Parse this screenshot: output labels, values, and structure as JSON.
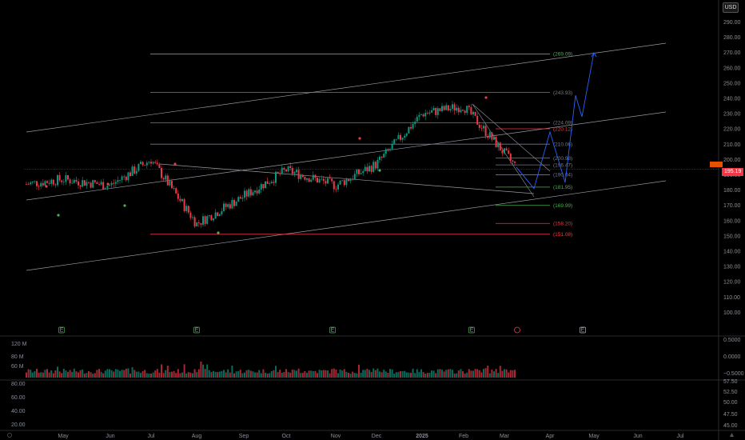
{
  "currency": "USD",
  "current_price_label": "195.19",
  "chart_data": {
    "type": "line",
    "title": "",
    "price_axis": {
      "ticks": [
        "290.00",
        "280.00",
        "270.00",
        "260.00",
        "250.00",
        "240.00",
        "230.00",
        "220.00",
        "210.00",
        "200.00",
        "190.00",
        "180.00",
        "170.00",
        "160.00",
        "150.00",
        "140.00",
        "130.00",
        "120.00",
        "110.00",
        "100.00"
      ],
      "ylim": [
        96,
        296
      ]
    },
    "time_axis": {
      "ticks": [
        "May",
        "Jun",
        "Jul",
        "Aug",
        "Sep",
        "Oct",
        "Nov",
        "Dec",
        "2025",
        "Feb",
        "Mar",
        "Apr",
        "May",
        "Jun",
        "Jul"
      ]
    },
    "price_series": {
      "name": "",
      "x": [
        "Apr",
        "May",
        "Jun",
        "Jul",
        "Aug",
        "Sep",
        "Oct",
        "Nov",
        "Dec",
        "Jan",
        "Feb",
        "Mar"
      ],
      "values": [
        184,
        187,
        183,
        200,
        158,
        176,
        193,
        183,
        197,
        230,
        235,
        195
      ]
    },
    "fib_levels": [
      {
        "label": "(269.09)",
        "value": 269.09,
        "color": "#4caf50"
      },
      {
        "label": "(243.93)",
        "value": 243.93,
        "color": "#787b86"
      },
      {
        "label": "(224.09)",
        "value": 224.09,
        "color": "#787b86"
      },
      {
        "label": "(220.12)",
        "value": 220.12,
        "color": "#f23645"
      },
      {
        "label": "(210.06)",
        "value": 210.06,
        "color": "#787b86"
      },
      {
        "label": "(200.98)",
        "value": 200.98,
        "color": "#787b86"
      },
      {
        "label": "(196.47)",
        "value": 196.47,
        "color": "#787b86"
      },
      {
        "label": "(190.04)",
        "value": 190.04,
        "color": "#787b86"
      },
      {
        "label": "(181.95)",
        "value": 181.95,
        "color": "#4caf50"
      },
      {
        "label": "(169.99)",
        "value": 169.99,
        "color": "#4caf50"
      },
      {
        "label": "(158.20)",
        "value": 158.2,
        "color": "#f23645"
      },
      {
        "label": "(151.08)",
        "value": 151.08,
        "color": "#f23645"
      }
    ],
    "projection_path": [
      195,
      181,
      218,
      185,
      242,
      228,
      270
    ],
    "volume_panel": {
      "left_ticks": [
        "120 M",
        "80 M",
        "60 M"
      ],
      "right_ticks": [
        "0.5000",
        "0.0000",
        "−0.5000"
      ]
    },
    "oscillator_panel": {
      "left_ticks": [
        "80.00",
        "60.00",
        "40.00",
        "20.00"
      ],
      "right_ticks": [
        "57.50",
        "52.50",
        "50.00",
        "47.50",
        "45.00"
      ]
    },
    "event_markers": [
      "E",
      "E",
      "E",
      "E",
      "E"
    ],
    "grid": false
  }
}
